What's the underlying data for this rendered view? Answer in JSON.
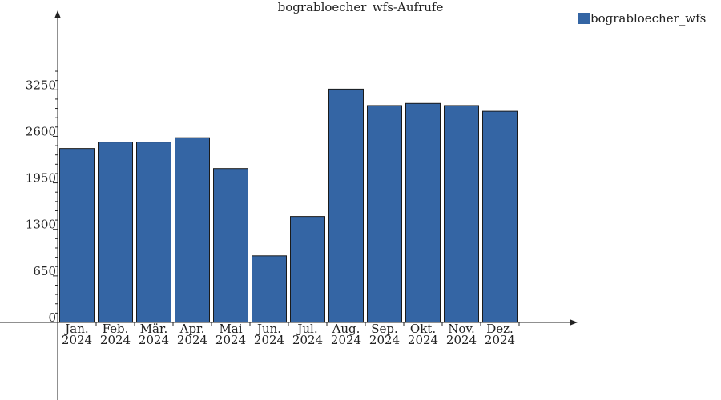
{
  "chart_data": {
    "type": "bar",
    "title": "bograbloecher_wfs-Aufrufe",
    "categories": [
      [
        "Jan.",
        "2024"
      ],
      [
        "Feb.",
        "2024"
      ],
      [
        "Mär.",
        "2024"
      ],
      [
        "Apr.",
        "2024"
      ],
      [
        "Mai",
        "2024"
      ],
      [
        "Jun.",
        "2024"
      ],
      [
        "Jul.",
        "2024"
      ],
      [
        "Aug.",
        "2024"
      ],
      [
        "Sep.",
        "2024"
      ],
      [
        "Okt.",
        "2024"
      ],
      [
        "Nov.",
        "2024"
      ],
      [
        "Dez.",
        "2024"
      ]
    ],
    "series": [
      {
        "name": "bograbloecher_wfs",
        "color": "#3465a4",
        "values": [
          2430,
          2520,
          2520,
          2580,
          2150,
          930,
          1480,
          3260,
          3030,
          3060,
          3030,
          2950
        ]
      }
    ],
    "yticks": [
      "0",
      "650",
      "1300",
      "1950",
      "2600",
      "3250"
    ],
    "ylim": [
      0,
      4360
    ],
    "grid": false,
    "legend_position": "top-right"
  }
}
